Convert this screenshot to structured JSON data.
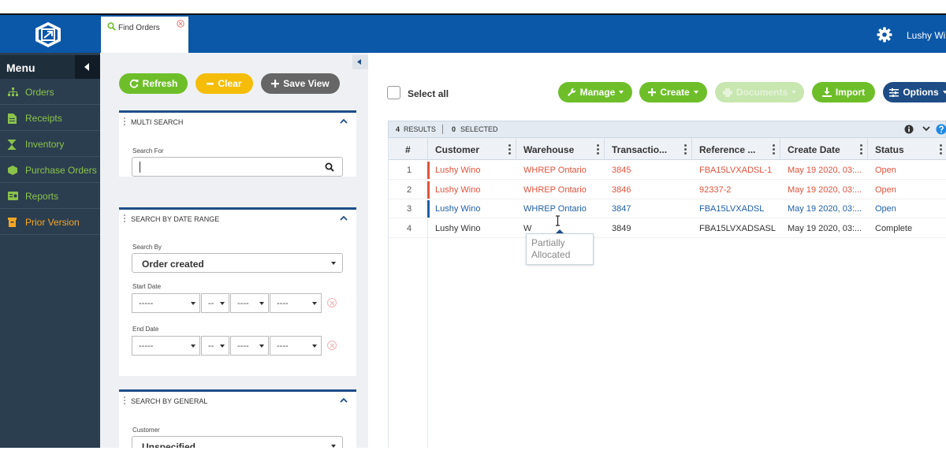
{
  "topbar": {
    "tab_label": "Find Orders",
    "user_name": "Lushy Wino"
  },
  "sidebar": {
    "title": "Menu",
    "items": [
      {
        "label": "Orders",
        "icon": "sitemap-icon"
      },
      {
        "label": "Receipts",
        "icon": "document-icon"
      },
      {
        "label": "Inventory",
        "icon": "hourglass-icon"
      },
      {
        "label": "Purchase Orders",
        "icon": "box-icon"
      },
      {
        "label": "Reports",
        "icon": "reports-icon"
      },
      {
        "label": "Prior Version",
        "icon": "archive-icon"
      }
    ]
  },
  "left_panel": {
    "buttons": {
      "refresh": "Refresh",
      "clear": "Clear",
      "save_view": "Save View"
    },
    "multi_search": {
      "title": "MULTI SEARCH",
      "search_for_label": "Search For",
      "search_value": ""
    },
    "date_range": {
      "title": "SEARCH BY DATE RANGE",
      "search_by_label": "Search By",
      "search_by_value": "Order created",
      "start_label": "Start Date",
      "end_label": "End Date",
      "month_value": "-----",
      "day_value": "--",
      "year_value": "----",
      "time_value": "----"
    },
    "general": {
      "title": "SEARCH BY GENERAL",
      "customer_label": "Customer",
      "customer_value": "Unspecified"
    }
  },
  "toolbar": {
    "select_all": "Select all",
    "manage": "Manage",
    "create": "Create",
    "documents": "Documents",
    "import": "Import",
    "options": "Options"
  },
  "results": {
    "count": "4",
    "results_label": "RESULTS",
    "selected_count": "0",
    "selected_label": "SELECTED"
  },
  "table": {
    "columns": [
      "#",
      "Customer",
      "Warehouse",
      "Transactio...",
      "Reference ...",
      "Create Date",
      "Status"
    ],
    "rows": [
      {
        "num": "1",
        "customer": "Lushy Wino",
        "warehouse": "WHREP Ontario",
        "transaction": "3845",
        "reference": "FBA15LVXADSL-1",
        "create_date": "May 19 2020, 03:...",
        "status": "Open",
        "color": "#e0533c",
        "stripe": "#e0533c"
      },
      {
        "num": "2",
        "customer": "Lushy Wino",
        "warehouse": "WHREP Ontario",
        "transaction": "3846",
        "reference": "92337-2",
        "create_date": "May 19 2020, 03:...",
        "status": "Open",
        "color": "#e0533c",
        "stripe": "#e0533c"
      },
      {
        "num": "3",
        "customer": "Lushy Wino",
        "warehouse": "WHREP Ontario",
        "transaction": "3847",
        "reference": "FBA15LVXADSL",
        "create_date": "May 19 2020, 03:...",
        "status": "Open",
        "color": "#1f5fa8",
        "stripe": "#1f5fa8"
      },
      {
        "num": "4",
        "customer": "Lushy Wino",
        "warehouse": "W",
        "transaction": "3849",
        "reference": "FBA15LVXADSASL",
        "create_date": "May 19 2020, 03:...",
        "status": "Complete",
        "color": "#333333",
        "stripe": ""
      }
    ],
    "tooltip": "Partially Allocated"
  },
  "colors": {
    "brand_blue": "#0b57a8",
    "sidebar": "#2b3e50",
    "green": "#6ebe2a",
    "yellow": "#f5bd0a",
    "dark_blue": "#1e4d86",
    "danger": "#e0533c"
  }
}
